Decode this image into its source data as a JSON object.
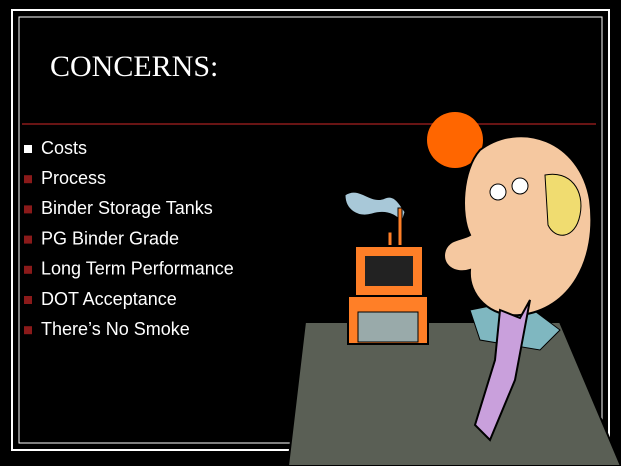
{
  "slide": {
    "title": "CONCERNS:",
    "bullets": [
      "Costs",
      "Process",
      "Binder Storage Tanks",
      "PG Binder Grade",
      "Long Term Performance",
      "DOT Acceptance",
      "There’s No Smoke"
    ]
  }
}
